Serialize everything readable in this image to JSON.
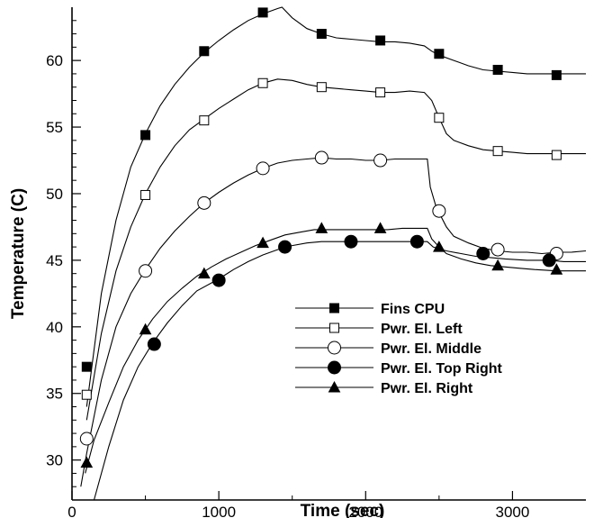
{
  "chart_data": {
    "type": "line",
    "title": "",
    "xlabel": "Time (sec)",
    "ylabel": "Temperature (C)",
    "xlim": [
      0,
      3500
    ],
    "ylim": [
      27,
      64
    ],
    "x_ticks": [
      0,
      1000,
      2000,
      3000
    ],
    "y_ticks": [
      30,
      35,
      40,
      45,
      50,
      55,
      60
    ],
    "grid": false,
    "legend_position": "bottom-right",
    "series": [
      {
        "name": "Fins CPU",
        "marker": "filled-square",
        "color": "#000000",
        "line": [
          [
            100,
            34.0
          ],
          [
            200,
            42.5
          ],
          [
            300,
            48.0
          ],
          [
            400,
            52.0
          ],
          [
            500,
            54.5
          ],
          [
            600,
            56.6
          ],
          [
            700,
            58.2
          ],
          [
            800,
            59.5
          ],
          [
            900,
            60.6
          ],
          [
            1000,
            61.5
          ],
          [
            1100,
            62.3
          ],
          [
            1200,
            63.0
          ],
          [
            1300,
            63.5
          ],
          [
            1400,
            63.9
          ],
          [
            1430,
            64.0
          ],
          [
            1500,
            63.2
          ],
          [
            1600,
            62.4
          ],
          [
            1700,
            62.0
          ],
          [
            1800,
            61.7
          ],
          [
            1900,
            61.6
          ],
          [
            2000,
            61.5
          ],
          [
            2100,
            61.4
          ],
          [
            2200,
            61.4
          ],
          [
            2300,
            61.3
          ],
          [
            2400,
            61.1
          ],
          [
            2450,
            60.7
          ],
          [
            2500,
            60.4
          ],
          [
            2600,
            60.0
          ],
          [
            2700,
            59.6
          ],
          [
            2800,
            59.3
          ],
          [
            2900,
            59.2
          ],
          [
            3000,
            59.1
          ],
          [
            3100,
            59.0
          ],
          [
            3200,
            59.0
          ],
          [
            3300,
            59.0
          ],
          [
            3400,
            59.0
          ],
          [
            3500,
            59.0
          ]
        ],
        "markers": [
          [
            100,
            37.0
          ],
          [
            500,
            54.4
          ],
          [
            900,
            60.7
          ],
          [
            1300,
            63.6
          ],
          [
            1700,
            62.0
          ],
          [
            2100,
            61.5
          ],
          [
            2500,
            60.5
          ],
          [
            2900,
            59.3
          ],
          [
            3300,
            58.9
          ]
        ]
      },
      {
        "name": "Pwr. El. Left",
        "marker": "open-square",
        "color": "#000000",
        "line": [
          [
            100,
            33.0
          ],
          [
            200,
            39.5
          ],
          [
            300,
            44.2
          ],
          [
            400,
            47.5
          ],
          [
            500,
            50.0
          ],
          [
            600,
            52.0
          ],
          [
            700,
            53.6
          ],
          [
            800,
            54.8
          ],
          [
            900,
            55.6
          ],
          [
            1000,
            56.4
          ],
          [
            1100,
            57.1
          ],
          [
            1200,
            57.8
          ],
          [
            1300,
            58.3
          ],
          [
            1400,
            58.6
          ],
          [
            1500,
            58.5
          ],
          [
            1600,
            58.2
          ],
          [
            1700,
            58.0
          ],
          [
            1800,
            57.9
          ],
          [
            1900,
            57.8
          ],
          [
            2000,
            57.7
          ],
          [
            2100,
            57.6
          ],
          [
            2200,
            57.6
          ],
          [
            2300,
            57.7
          ],
          [
            2400,
            57.6
          ],
          [
            2450,
            57.0
          ],
          [
            2500,
            55.7
          ],
          [
            2550,
            54.5
          ],
          [
            2600,
            54.0
          ],
          [
            2700,
            53.6
          ],
          [
            2800,
            53.3
          ],
          [
            2900,
            53.2
          ],
          [
            3000,
            53.1
          ],
          [
            3100,
            53.0
          ],
          [
            3200,
            53.0
          ],
          [
            3300,
            53.0
          ],
          [
            3400,
            53.0
          ],
          [
            3500,
            53.0
          ]
        ],
        "markers": [
          [
            100,
            34.9
          ],
          [
            500,
            49.9
          ],
          [
            900,
            55.5
          ],
          [
            1300,
            58.3
          ],
          [
            1700,
            58.0
          ],
          [
            2100,
            57.6
          ],
          [
            2500,
            55.7
          ],
          [
            2900,
            53.2
          ],
          [
            3300,
            52.9
          ]
        ]
      },
      {
        "name": "Pwr. El. Middle",
        "marker": "open-circle",
        "color": "#000000",
        "line": [
          [
            60,
            28.0
          ],
          [
            100,
            30.5
          ],
          [
            200,
            36.0
          ],
          [
            300,
            40.0
          ],
          [
            400,
            42.5
          ],
          [
            500,
            44.3
          ],
          [
            600,
            45.9
          ],
          [
            700,
            47.2
          ],
          [
            800,
            48.3
          ],
          [
            900,
            49.3
          ],
          [
            1000,
            50.1
          ],
          [
            1100,
            50.8
          ],
          [
            1200,
            51.4
          ],
          [
            1300,
            51.9
          ],
          [
            1400,
            52.3
          ],
          [
            1500,
            52.5
          ],
          [
            1600,
            52.6
          ],
          [
            1700,
            52.7
          ],
          [
            1800,
            52.6
          ],
          [
            1900,
            52.6
          ],
          [
            2000,
            52.5
          ],
          [
            2100,
            52.5
          ],
          [
            2200,
            52.6
          ],
          [
            2300,
            52.6
          ],
          [
            2420,
            52.6
          ],
          [
            2440,
            50.5
          ],
          [
            2480,
            49.0
          ],
          [
            2550,
            47.5
          ],
          [
            2600,
            46.8
          ],
          [
            2700,
            46.3
          ],
          [
            2800,
            45.9
          ],
          [
            2900,
            45.7
          ],
          [
            3000,
            45.6
          ],
          [
            3100,
            45.6
          ],
          [
            3200,
            45.5
          ],
          [
            3300,
            45.6
          ],
          [
            3400,
            45.6
          ],
          [
            3500,
            45.7
          ]
        ],
        "markers": [
          [
            100,
            31.6
          ],
          [
            500,
            44.2
          ],
          [
            900,
            49.3
          ],
          [
            1300,
            51.9
          ],
          [
            1700,
            52.7
          ],
          [
            2100,
            52.5
          ],
          [
            2500,
            48.7
          ],
          [
            2900,
            45.8
          ],
          [
            3300,
            45.5
          ]
        ]
      },
      {
        "name": "Pwr. El. Top Right",
        "marker": "filled-circle",
        "color": "#000000",
        "line": [
          [
            150,
            27.0
          ],
          [
            250,
            31.0
          ],
          [
            350,
            34.5
          ],
          [
            450,
            37.0
          ],
          [
            550,
            38.8
          ],
          [
            650,
            40.3
          ],
          [
            750,
            41.6
          ],
          [
            850,
            42.7
          ],
          [
            1000,
            43.6
          ],
          [
            1100,
            44.3
          ],
          [
            1200,
            44.9
          ],
          [
            1300,
            45.4
          ],
          [
            1400,
            45.8
          ],
          [
            1500,
            46.1
          ],
          [
            1600,
            46.3
          ],
          [
            1700,
            46.4
          ],
          [
            1800,
            46.4
          ],
          [
            1900,
            46.4
          ],
          [
            2000,
            46.4
          ],
          [
            2100,
            46.4
          ],
          [
            2200,
            46.4
          ],
          [
            2300,
            46.4
          ],
          [
            2420,
            46.4
          ],
          [
            2460,
            46.0
          ],
          [
            2550,
            45.7
          ],
          [
            2650,
            45.5
          ],
          [
            2750,
            45.3
          ],
          [
            2850,
            45.2
          ],
          [
            2950,
            45.1
          ],
          [
            3100,
            45.0
          ],
          [
            3250,
            45.0
          ],
          [
            3350,
            44.9
          ],
          [
            3500,
            44.9
          ]
        ],
        "markers": [
          [
            560,
            38.7
          ],
          [
            1000,
            43.5
          ],
          [
            1450,
            46.0
          ],
          [
            1900,
            46.4
          ],
          [
            2350,
            46.4
          ],
          [
            2800,
            45.5
          ],
          [
            3250,
            45.0
          ]
        ]
      },
      {
        "name": "Pwr. El. Right",
        "marker": "filled-triangle",
        "color": "#000000",
        "line": [
          [
            90,
            29.0
          ],
          [
            150,
            31.5
          ],
          [
            250,
            34.3
          ],
          [
            350,
            37.0
          ],
          [
            450,
            39.0
          ],
          [
            550,
            40.6
          ],
          [
            650,
            41.9
          ],
          [
            750,
            42.9
          ],
          [
            850,
            43.8
          ],
          [
            950,
            44.5
          ],
          [
            1050,
            45.1
          ],
          [
            1150,
            45.6
          ],
          [
            1250,
            46.1
          ],
          [
            1350,
            46.5
          ],
          [
            1450,
            46.9
          ],
          [
            1550,
            47.1
          ],
          [
            1650,
            47.3
          ],
          [
            1750,
            47.3
          ],
          [
            1850,
            47.3
          ],
          [
            1950,
            47.3
          ],
          [
            2050,
            47.3
          ],
          [
            2150,
            47.3
          ],
          [
            2250,
            47.4
          ],
          [
            2350,
            47.4
          ],
          [
            2420,
            47.4
          ],
          [
            2450,
            46.6
          ],
          [
            2500,
            46.0
          ],
          [
            2550,
            45.5
          ],
          [
            2650,
            45.1
          ],
          [
            2750,
            44.8
          ],
          [
            2850,
            44.6
          ],
          [
            2950,
            44.5
          ],
          [
            3050,
            44.4
          ],
          [
            3150,
            44.3
          ],
          [
            3300,
            44.2
          ],
          [
            3400,
            44.2
          ],
          [
            3500,
            44.2
          ]
        ],
        "markers": [
          [
            100,
            29.8
          ],
          [
            500,
            39.8
          ],
          [
            900,
            44.0
          ],
          [
            1300,
            46.3
          ],
          [
            1700,
            47.4
          ],
          [
            2100,
            47.4
          ],
          [
            2500,
            46.0
          ],
          [
            2900,
            44.6
          ],
          [
            3300,
            44.3
          ]
        ]
      }
    ]
  }
}
